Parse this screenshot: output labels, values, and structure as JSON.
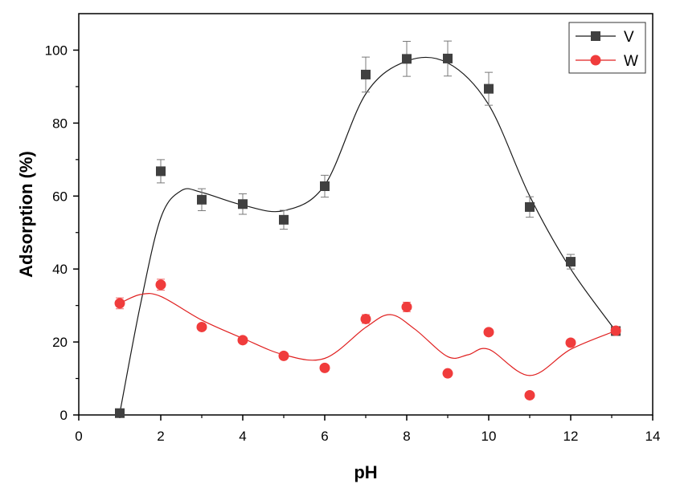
{
  "chart_data": {
    "type": "scatter",
    "title": "",
    "xlabel": "pH",
    "ylabel": "Adsorption (%)",
    "xlim": [
      0,
      14
    ],
    "ylim": [
      0,
      110
    ],
    "xticks": [
      0,
      2,
      4,
      6,
      8,
      10,
      12,
      14
    ],
    "yticks": [
      0,
      20,
      40,
      60,
      80,
      100
    ],
    "grid": false,
    "legend_position": "top-right",
    "series": [
      {
        "name": "V",
        "marker": "square",
        "color": "#404040",
        "line_color": "#1a1a1a",
        "x": [
          1,
          2,
          3,
          4,
          5,
          6,
          7,
          8,
          9,
          10,
          11,
          12,
          13.1
        ],
        "y": [
          0.5,
          66.8,
          59,
          57.8,
          53.5,
          62.7,
          93.3,
          97.6,
          97.7,
          89.4,
          57,
          42,
          23
        ],
        "error": [
          0,
          3.2,
          3,
          2.8,
          2.6,
          3,
          4.8,
          4.8,
          4.8,
          4.5,
          2.8,
          2,
          1
        ],
        "fit_x": [
          1,
          1.5,
          2,
          2.5,
          3,
          4,
          5,
          6,
          7,
          8,
          9,
          10,
          11,
          12,
          13.1
        ],
        "fit_y": [
          0.5,
          30,
          54,
          61.5,
          61,
          57.5,
          56,
          63,
          88,
          97,
          96.5,
          85,
          60,
          40,
          23
        ]
      },
      {
        "name": "W",
        "marker": "circle",
        "color": "#f03c3c",
        "line_color": "#e02020",
        "x": [
          1,
          2,
          3,
          4,
          5,
          6,
          7,
          8,
          9,
          10,
          11,
          12,
          13.1
        ],
        "y": [
          30.6,
          35.7,
          24.1,
          20.5,
          16.2,
          12.9,
          26.3,
          29.6,
          11.4,
          22.7,
          5.4,
          19.8,
          23.1
        ],
        "error": [
          1.5,
          1.5,
          0.8,
          0.8,
          0.5,
          0.5,
          1.2,
          1.3,
          0.4,
          0.6,
          0.3,
          0.6,
          0.8
        ],
        "fit_x": [
          1,
          1.5,
          2,
          3,
          4,
          5,
          6,
          7,
          7.6,
          8.2,
          9,
          9.5,
          10,
          11,
          12,
          13.1
        ],
        "fit_y": [
          30.6,
          33,
          32.5,
          26,
          21,
          16.5,
          15.5,
          24,
          27.5,
          23.5,
          16,
          16.5,
          18,
          10.8,
          18,
          23.1
        ]
      }
    ]
  }
}
